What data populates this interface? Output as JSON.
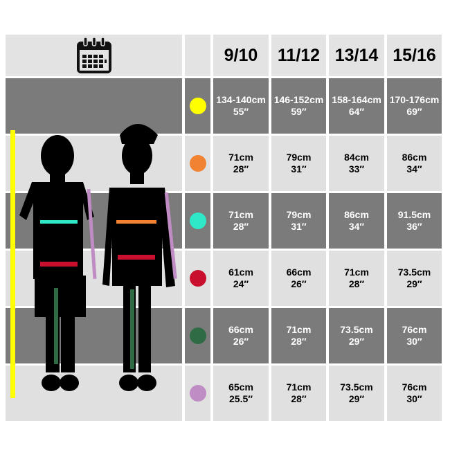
{
  "header": {
    "icon": "calendar-icon",
    "sizes": [
      "9/10",
      "11/12",
      "13/14",
      "15/16"
    ]
  },
  "rows": [
    {
      "measure_color": "#ffff00",
      "values": [
        [
          "134-140cm",
          "55″"
        ],
        [
          "146-152cm",
          "59″"
        ],
        [
          "158-164cm",
          "64″"
        ],
        [
          "170-176cm",
          "69″"
        ]
      ]
    },
    {
      "measure_color": "#f08232",
      "values": [
        [
          "71cm",
          "28″"
        ],
        [
          "79cm",
          "31″"
        ],
        [
          "84cm",
          "33″"
        ],
        [
          "86cm",
          "34″"
        ]
      ]
    },
    {
      "measure_color": "#2ee8c8",
      "values": [
        [
          "71cm",
          "28″"
        ],
        [
          "79cm",
          "31″"
        ],
        [
          "86cm",
          "34″"
        ],
        [
          "91.5cm",
          "36″"
        ]
      ]
    },
    {
      "measure_color": "#c8102e",
      "values": [
        [
          "61cm",
          "24″"
        ],
        [
          "66cm",
          "26″"
        ],
        [
          "71cm",
          "28″"
        ],
        [
          "73.5cm",
          "29″"
        ]
      ]
    },
    {
      "measure_color": "#2f6b45",
      "values": [
        [
          "66cm",
          "26″"
        ],
        [
          "71cm",
          "28″"
        ],
        [
          "73.5cm",
          "29″"
        ],
        [
          "76cm",
          "30″"
        ]
      ]
    },
    {
      "measure_color": "#c08cc4",
      "values": [
        [
          "65cm",
          "25.5″"
        ],
        [
          "71cm",
          "28″"
        ],
        [
          "73.5cm",
          "29″"
        ],
        [
          "76cm",
          "30″"
        ]
      ]
    }
  ]
}
